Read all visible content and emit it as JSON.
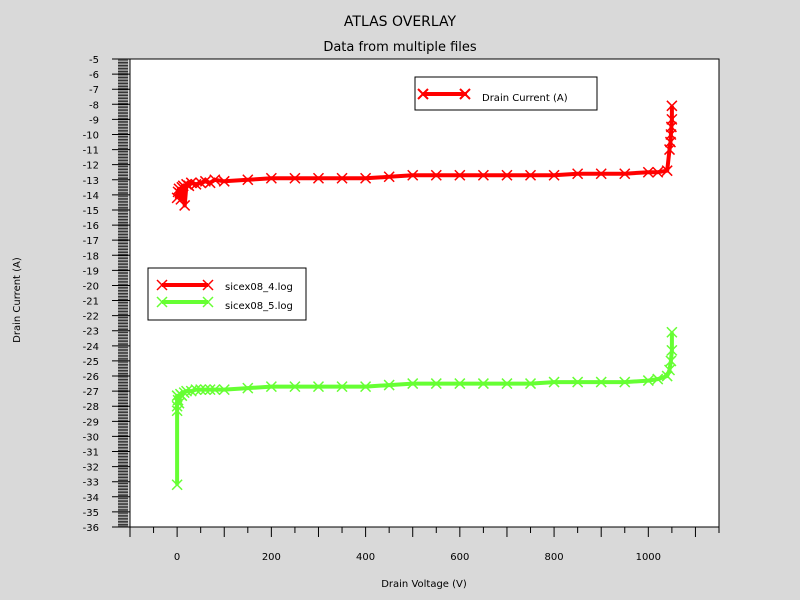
{
  "chart_data": {
    "type": "line",
    "title": "ATLAS OVERLAY",
    "subtitle": "Data from multiple files",
    "xlabel": "Drain Voltage (V)",
    "ylabel": "Drain Current (A)",
    "xlim": [
      -100,
      1150
    ],
    "ylim": [
      -36,
      -5
    ],
    "xticks": [
      0,
      200,
      400,
      600,
      800,
      1000
    ],
    "yticks": [
      -5,
      -6,
      -7,
      -8,
      -9,
      -10,
      -11,
      -12,
      -13,
      -14,
      -15,
      -16,
      -17,
      -18,
      -19,
      -20,
      -21,
      -22,
      -23,
      -24,
      -25,
      -26,
      -27,
      -28,
      -29,
      -30,
      -31,
      -32,
      -33,
      -34,
      -35,
      -36
    ],
    "grid": false,
    "legend_top": {
      "position": "top-right",
      "entries": [
        {
          "label": "Drain Current (A)",
          "color": "#ff0000"
        }
      ]
    },
    "legend_files": {
      "position": "middle-left",
      "entries": [
        {
          "label": "sicex08_4.log",
          "color": "#ff0000"
        },
        {
          "label": "sicex08_5.log",
          "color": "#66ff33"
        }
      ]
    },
    "series": [
      {
        "name": "sicex08_4.log",
        "color": "#ff0000",
        "x": [
          0,
          2,
          4,
          6,
          8,
          10,
          13,
          16,
          20,
          25,
          30,
          40,
          50,
          60,
          70,
          80,
          100,
          150,
          200,
          250,
          300,
          350,
          400,
          450,
          500,
          550,
          600,
          650,
          700,
          750,
          800,
          850,
          900,
          950,
          1000,
          1020,
          1040,
          1045,
          1047,
          1048,
          1049,
          1050,
          1050
        ],
        "y": [
          -14.2,
          -13.8,
          -13.6,
          -13.9,
          -14.3,
          -13.5,
          -13.4,
          -14.7,
          -13.3,
          -13.4,
          -13.2,
          -13.3,
          -13.2,
          -13.1,
          -13.2,
          -13.0,
          -13.1,
          -13.0,
          -12.9,
          -12.9,
          -12.9,
          -12.9,
          -12.9,
          -12.8,
          -12.7,
          -12.7,
          -12.7,
          -12.7,
          -12.7,
          -12.7,
          -12.7,
          -12.6,
          -12.6,
          -12.6,
          -12.5,
          -12.5,
          -12.4,
          -11.0,
          -10.5,
          -10.0,
          -9.5,
          -9.0,
          -8.1
        ]
      },
      {
        "name": "sicex08_5.log",
        "color": "#66ff33",
        "x": [
          0,
          0,
          0,
          0,
          2,
          4,
          7,
          10,
          15,
          20,
          30,
          40,
          50,
          60,
          70,
          80,
          100,
          150,
          200,
          250,
          300,
          350,
          400,
          450,
          500,
          550,
          600,
          650,
          700,
          750,
          800,
          850,
          900,
          950,
          1000,
          1020,
          1040,
          1045,
          1048,
          1050,
          1050
        ],
        "y": [
          -33.2,
          -28.3,
          -28.0,
          -27.3,
          -27.6,
          -27.8,
          -27.2,
          -27.3,
          -27.1,
          -27.0,
          -27.0,
          -26.9,
          -26.9,
          -26.9,
          -26.9,
          -26.9,
          -26.9,
          -26.8,
          -26.7,
          -26.7,
          -26.7,
          -26.7,
          -26.7,
          -26.6,
          -26.5,
          -26.5,
          -26.5,
          -26.5,
          -26.5,
          -26.5,
          -26.4,
          -26.4,
          -26.4,
          -26.4,
          -26.3,
          -26.2,
          -26.0,
          -25.6,
          -25.0,
          -24.3,
          -23.1
        ]
      }
    ]
  }
}
